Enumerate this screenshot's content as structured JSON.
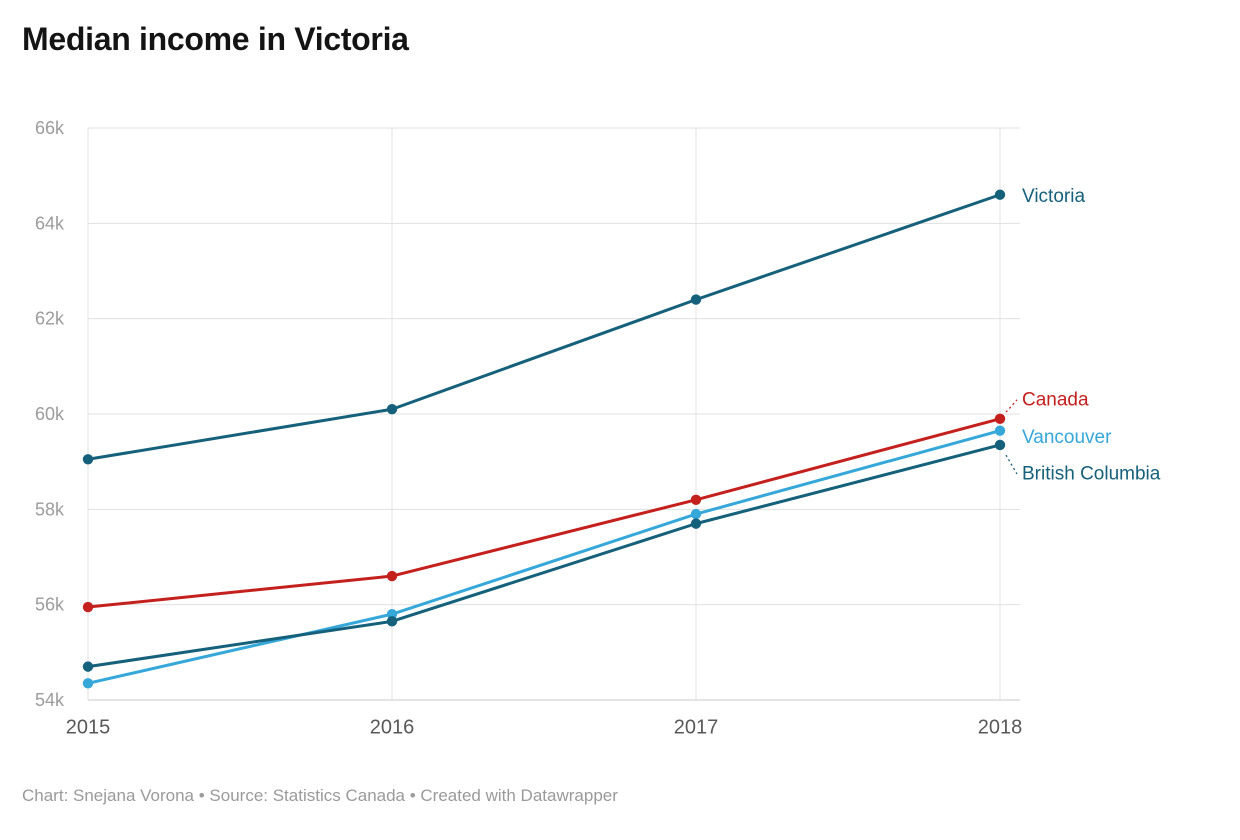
{
  "title": "Median income in Victoria",
  "footer": "Chart: Snejana Vorona • Source: Statistics Canada • Created with Datawrapper",
  "colors": {
    "dark_teal": "#15607a",
    "red": "#c4201d",
    "light_blue": "#35a7d9",
    "grid": "#e0e0e0",
    "baseline": "#c9c9c9",
    "y_tick_text": "#9c9c9c",
    "x_tick_text": "#585858",
    "footer_text": "#9a9a9a"
  },
  "chart_data": {
    "type": "line",
    "title": "Median income in Victoria",
    "xlabel": "",
    "ylabel": "",
    "categories": [
      "2015",
      "2016",
      "2017",
      "2018"
    ],
    "ylim": [
      54000,
      66000
    ],
    "grid": true,
    "legend_position": "right-of-line-ends",
    "y_ticks": [
      {
        "value": 54000,
        "label": "54k"
      },
      {
        "value": 56000,
        "label": "56k"
      },
      {
        "value": 58000,
        "label": "58k"
      },
      {
        "value": 60000,
        "label": "60k"
      },
      {
        "value": 62000,
        "label": "62k"
      },
      {
        "value": 64000,
        "label": "64k"
      },
      {
        "value": 66000,
        "label": "66k"
      }
    ],
    "series": [
      {
        "name": "Victoria",
        "color": "#15607a",
        "values": [
          59050,
          60100,
          62400,
          64600
        ],
        "label_dy": 2,
        "leader": false
      },
      {
        "name": "Canada",
        "color": "#c4201d",
        "values": [
          55950,
          56600,
          58200,
          59900
        ],
        "label_dy": -19,
        "leader": true
      },
      {
        "name": "Vancouver",
        "color": "#35a7d9",
        "values": [
          54350,
          55800,
          57900,
          59650
        ],
        "label_dy": 7,
        "leader": false
      },
      {
        "name": "British Columbia",
        "color": "#15607a",
        "values": [
          54700,
          55650,
          57700,
          59350
        ],
        "label_dy": 29,
        "leader": true
      }
    ]
  }
}
